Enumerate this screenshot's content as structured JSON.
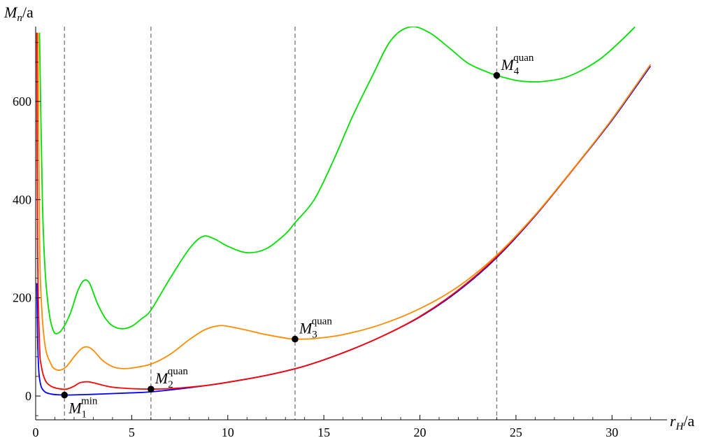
{
  "chart_data": {
    "type": "line",
    "title": "",
    "xlabel": {
      "var": "r",
      "sub": "H",
      "unit": "/a"
    },
    "ylabel": {
      "var": "M",
      "sub": "n",
      "unit": "/a"
    },
    "xlim": [
      0,
      32.5
    ],
    "ylim": [
      -50,
      750
    ],
    "x_ticks": [
      0,
      5,
      10,
      15,
      20,
      25,
      30
    ],
    "y_ticks": [
      0,
      200,
      400,
      600
    ],
    "grid": false,
    "vertical_dashed_lines": [
      1.5,
      6.0,
      13.5,
      24.0
    ],
    "series": [
      {
        "color": "#0000ff",
        "points": [
          [
            0.06,
            230
          ],
          [
            0.1,
            120
          ],
          [
            0.15,
            60
          ],
          [
            0.2,
            36
          ],
          [
            0.3,
            18
          ],
          [
            0.5,
            8
          ],
          [
            0.8,
            4
          ],
          [
            1.2,
            2.5
          ],
          [
            1.5,
            2
          ],
          [
            2,
            2.3
          ],
          [
            3,
            3.5
          ],
          [
            4,
            5
          ],
          [
            5,
            6.5
          ],
          [
            6,
            8.5
          ],
          [
            8,
            17
          ],
          [
            10,
            28
          ],
          [
            12,
            42
          ],
          [
            14,
            61
          ],
          [
            16,
            88
          ],
          [
            18,
            121
          ],
          [
            20,
            161
          ],
          [
            22,
            214
          ],
          [
            24,
            282
          ],
          [
            26,
            367
          ],
          [
            28,
            463
          ],
          [
            30,
            562
          ],
          [
            32,
            672
          ]
        ]
      },
      {
        "color": "#ff0000",
        "points": [
          [
            0.06,
            740
          ],
          [
            0.1,
            300
          ],
          [
            0.2,
            105
          ],
          [
            0.3,
            60
          ],
          [
            0.5,
            32
          ],
          [
            0.8,
            20
          ],
          [
            1.2,
            15
          ],
          [
            1.6,
            14
          ],
          [
            2,
            20
          ],
          [
            2.3,
            27
          ],
          [
            2.7,
            29
          ],
          [
            3,
            27
          ],
          [
            3.5,
            22
          ],
          [
            4,
            18
          ],
          [
            5,
            15
          ],
          [
            6,
            14
          ],
          [
            7,
            15
          ],
          [
            8,
            18
          ],
          [
            9,
            22
          ],
          [
            10,
            28
          ],
          [
            12,
            42
          ],
          [
            14,
            61
          ],
          [
            16,
            88
          ],
          [
            18,
            121
          ],
          [
            20,
            162
          ],
          [
            22,
            216
          ],
          [
            24,
            284
          ],
          [
            26,
            368
          ],
          [
            28,
            463
          ],
          [
            30,
            564
          ],
          [
            32,
            675
          ]
        ]
      },
      {
        "color": "#ff8c00",
        "points": [
          [
            0.12,
            740
          ],
          [
            0.2,
            330
          ],
          [
            0.3,
            190
          ],
          [
            0.5,
            100
          ],
          [
            0.8,
            65
          ],
          [
            1.0,
            55
          ],
          [
            1.3,
            53
          ],
          [
            1.6,
            60
          ],
          [
            2,
            80
          ],
          [
            2.4,
            97
          ],
          [
            2.7,
            100
          ],
          [
            3,
            93
          ],
          [
            3.5,
            72
          ],
          [
            4,
            60
          ],
          [
            4.5,
            56
          ],
          [
            5,
            57
          ],
          [
            6,
            65
          ],
          [
            7,
            85
          ],
          [
            8,
            115
          ],
          [
            8.8,
            135
          ],
          [
            9.5,
            143
          ],
          [
            10,
            142
          ],
          [
            11,
            134
          ],
          [
            12,
            125
          ],
          [
            13,
            118
          ],
          [
            13.5,
            116
          ],
          [
            14.5,
            117
          ],
          [
            16,
            125
          ],
          [
            18,
            146
          ],
          [
            20,
            178
          ],
          [
            22,
            223
          ],
          [
            24,
            287
          ],
          [
            26,
            369
          ],
          [
            28,
            464
          ],
          [
            30,
            564
          ],
          [
            32,
            675
          ]
        ]
      },
      {
        "color": "#00e000",
        "points": [
          [
            0.2,
            740
          ],
          [
            0.35,
            400
          ],
          [
            0.5,
            250
          ],
          [
            0.7,
            170
          ],
          [
            0.9,
            135
          ],
          [
            1.1,
            127
          ],
          [
            1.4,
            137
          ],
          [
            1.8,
            168
          ],
          [
            2.2,
            215
          ],
          [
            2.5,
            235
          ],
          [
            2.8,
            230
          ],
          [
            3.2,
            190
          ],
          [
            3.6,
            160
          ],
          [
            4,
            143
          ],
          [
            4.5,
            137
          ],
          [
            5,
            142
          ],
          [
            5.5,
            157
          ],
          [
            6,
            175
          ],
          [
            7,
            240
          ],
          [
            8,
            300
          ],
          [
            8.7,
            325
          ],
          [
            9.3,
            320
          ],
          [
            10,
            305
          ],
          [
            11,
            292
          ],
          [
            12,
            300
          ],
          [
            13,
            330
          ],
          [
            13.5,
            353
          ],
          [
            14.5,
            400
          ],
          [
            15.5,
            480
          ],
          [
            16.5,
            570
          ],
          [
            17.5,
            650
          ],
          [
            18.5,
            725
          ],
          [
            19.5,
            752
          ],
          [
            20.5,
            740
          ],
          [
            21.5,
            710
          ],
          [
            22.5,
            678
          ],
          [
            23.5,
            660
          ],
          [
            24,
            653
          ],
          [
            25,
            643
          ],
          [
            25.8,
            640
          ],
          [
            26.5,
            641
          ],
          [
            27.5,
            648
          ],
          [
            28.5,
            665
          ],
          [
            29.5,
            690
          ],
          [
            30.5,
            725
          ],
          [
            31.2,
            752
          ]
        ]
      }
    ],
    "annotations": [
      {
        "x": 1.5,
        "y": 2,
        "var": "M",
        "sub": "1",
        "sup": "min",
        "pos": "below-right"
      },
      {
        "x": 6.0,
        "y": 14,
        "var": "M",
        "sub": "2",
        "sup": "quan",
        "pos": "above-right"
      },
      {
        "x": 13.5,
        "y": 116,
        "var": "M",
        "sub": "3",
        "sup": "quan",
        "pos": "above-right"
      },
      {
        "x": 24.0,
        "y": 653,
        "var": "M",
        "sub": "4",
        "sup": "quan",
        "pos": "above-right"
      }
    ]
  }
}
